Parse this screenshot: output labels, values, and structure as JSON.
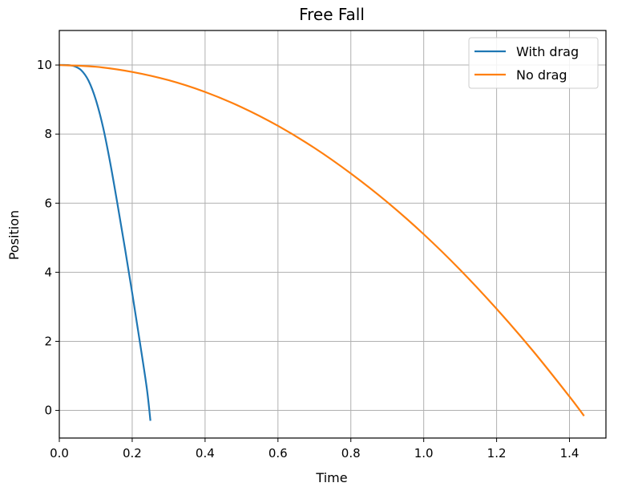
{
  "chart_data": {
    "type": "line",
    "title": "Free Fall",
    "xlabel": "Time",
    "ylabel": "Position",
    "xlim": [
      0.0,
      1.5
    ],
    "ylim": [
      -0.8,
      11.0
    ],
    "xticks": [
      "0.0",
      "0.2",
      "0.4",
      "0.6",
      "0.8",
      "1.0",
      "1.2",
      "1.4"
    ],
    "yticks": [
      "0",
      "2",
      "4",
      "6",
      "8",
      "10"
    ],
    "grid": true,
    "legend_position": "top-right",
    "series": [
      {
        "name": "With drag",
        "color": "#1f77b4",
        "x": [
          0.0,
          0.02,
          0.04,
          0.06,
          0.08,
          0.1,
          0.12,
          0.14,
          0.16,
          0.18,
          0.2,
          0.22,
          0.24,
          0.25
        ],
        "y": [
          10.0,
          10.0,
          9.97,
          9.85,
          9.55,
          9.0,
          8.2,
          7.15,
          5.95,
          4.7,
          3.4,
          2.05,
          0.65,
          -0.3
        ]
      },
      {
        "name": "No drag",
        "color": "#ff7f0e",
        "x": [
          0.0,
          0.1,
          0.2,
          0.3,
          0.4,
          0.5,
          0.6,
          0.7,
          0.8,
          0.9,
          1.0,
          1.1,
          1.2,
          1.3,
          1.4,
          1.44
        ],
        "y": [
          10.0,
          9.95,
          9.8,
          9.56,
          9.22,
          8.78,
          8.24,
          7.6,
          6.86,
          6.03,
          5.1,
          4.07,
          2.94,
          1.72,
          0.4,
          -0.16
        ]
      }
    ]
  }
}
